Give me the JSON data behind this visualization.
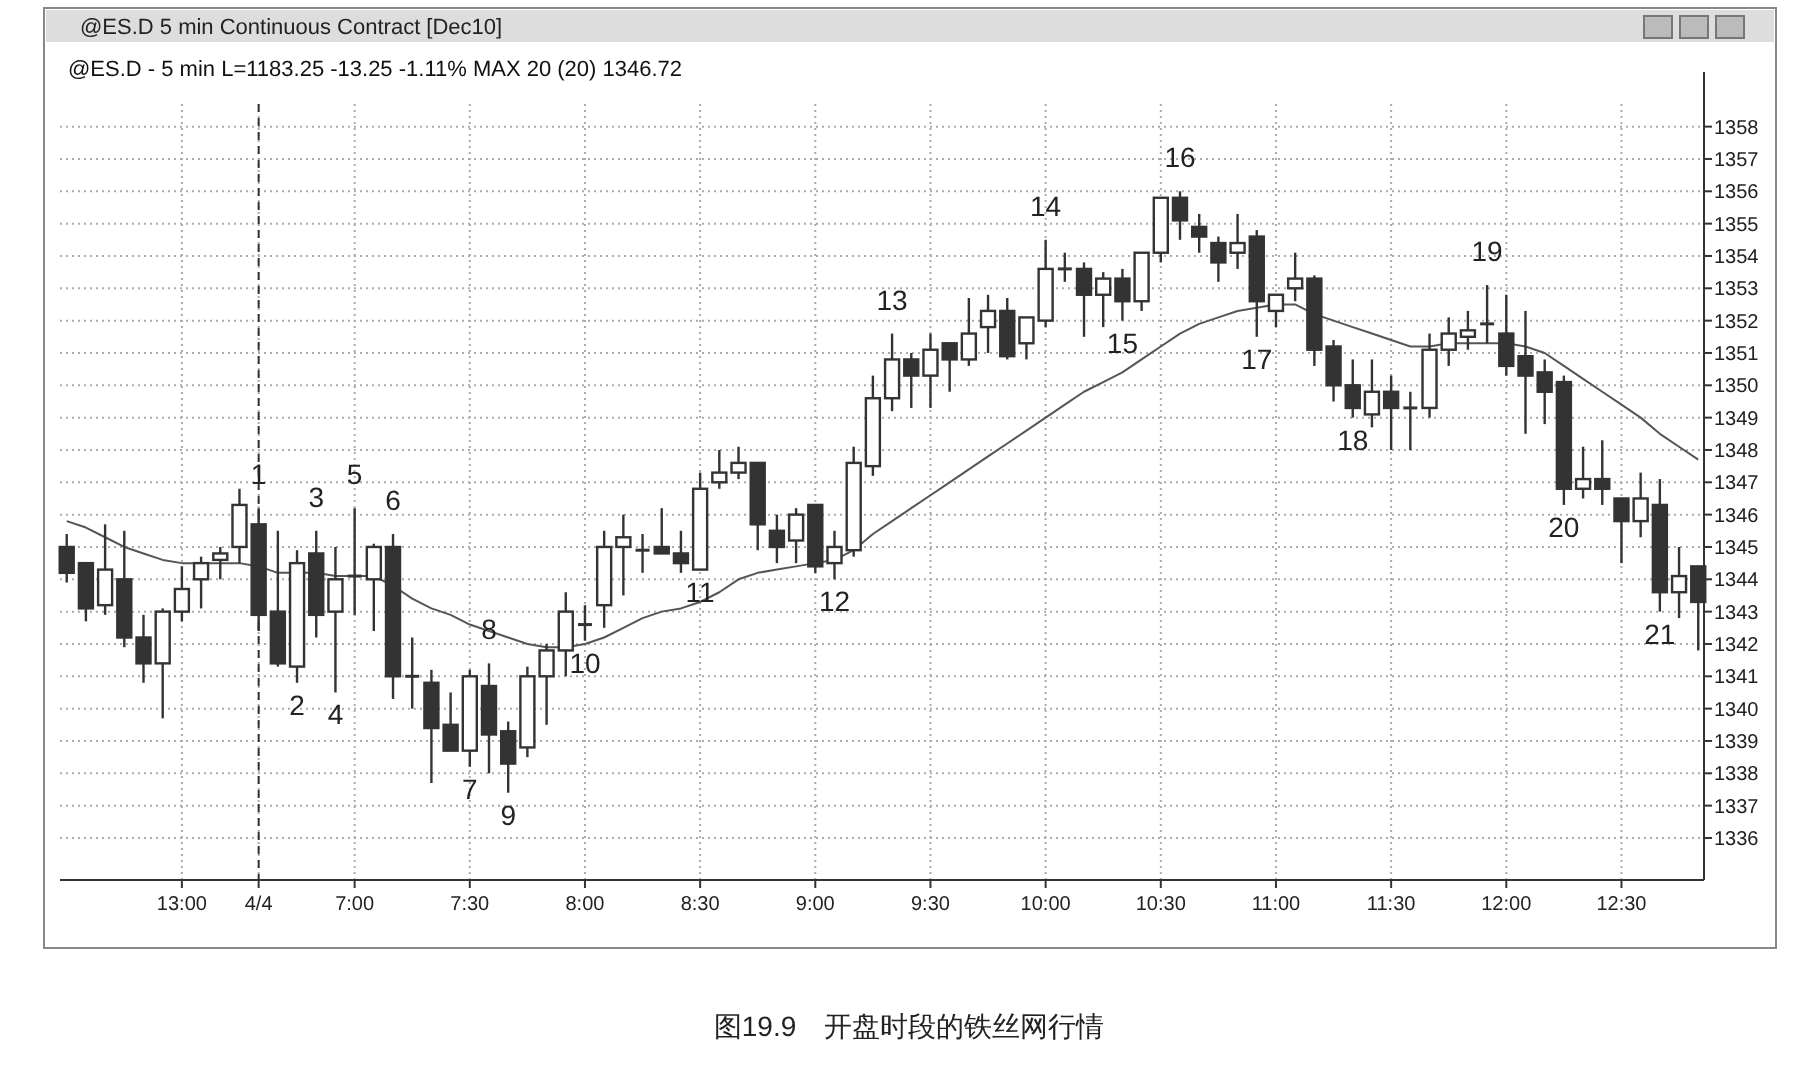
{
  "chart_data": {
    "type": "candlestick",
    "title": "@ES.D - 5 min  L=1183.25  -13.25  -1.11%  MAX 20 (20)  1346.72",
    "subtitle": "@ES.D 5 min Continuous Contract [Dec10]",
    "color": "#333333",
    "categories": [
      null,
      null,
      null,
      null,
      null,
      null,
      "13:00",
      null,
      null,
      null,
      "4/4",
      null,
      null,
      null,
      null,
      "7:00",
      null,
      null,
      null,
      null,
      null,
      "7:30",
      null,
      null,
      null,
      null,
      null,
      "8:00",
      null,
      null,
      null,
      null,
      null,
      "8:30",
      null,
      null,
      null,
      null,
      null,
      "9:00",
      null,
      null,
      null,
      null,
      null,
      "9:30",
      null,
      null,
      null,
      null,
      null,
      "10:00",
      null,
      null,
      null,
      null,
      null,
      "10:30",
      null,
      null,
      null,
      null,
      null,
      "11:00",
      null,
      null,
      null,
      null,
      null,
      "11:30",
      null,
      null,
      null,
      null,
      null,
      "12:00",
      null,
      null,
      null,
      null,
      null,
      "12:30",
      null,
      null,
      null,
      null
    ],
    "ohlc": [
      [
        1345.0,
        1345.4,
        1343.9,
        1344.2
      ],
      [
        1344.5,
        1344.5,
        1342.7,
        1343.1
      ],
      [
        1343.2,
        1345.7,
        1342.9,
        1344.3
      ],
      [
        1344.0,
        1345.5,
        1341.9,
        1342.2
      ],
      [
        1342.2,
        1342.9,
        1340.8,
        1341.4
      ],
      [
        1341.4,
        1343.1,
        1339.7,
        1343.0
      ],
      [
        1343.0,
        1344.4,
        1342.7,
        1343.7
      ],
      [
        1344.0,
        1344.7,
        1343.1,
        1344.5
      ],
      [
        1344.6,
        1345.0,
        1344.0,
        1344.8
      ],
      [
        1345.0,
        1346.8,
        1344.5,
        1346.3
      ],
      [
        1345.7,
        1346.2,
        1342.4,
        1342.9
      ],
      [
        1343.0,
        1345.5,
        1341.3,
        1341.4
      ],
      [
        1341.3,
        1344.9,
        1340.8,
        1344.5
      ],
      [
        1344.8,
        1345.5,
        1342.2,
        1342.9
      ],
      [
        1343.0,
        1345.0,
        1340.5,
        1344.0
      ],
      [
        1344.1,
        1346.2,
        1342.9,
        1344.1
      ],
      [
        1344.0,
        1345.1,
        1342.4,
        1345.0
      ],
      [
        1345.0,
        1345.4,
        1340.3,
        1341.0
      ],
      [
        1341.0,
        1342.2,
        1340.0,
        1341.0
      ],
      [
        1340.8,
        1341.2,
        1337.7,
        1339.4
      ],
      [
        1339.5,
        1340.5,
        1338.7,
        1338.7
      ],
      [
        1338.7,
        1341.2,
        1338.2,
        1341.0
      ],
      [
        1340.7,
        1341.4,
        1338.0,
        1339.2
      ],
      [
        1339.3,
        1339.6,
        1337.4,
        1338.3
      ],
      [
        1338.8,
        1341.3,
        1338.5,
        1341.0
      ],
      [
        1341.0,
        1342.0,
        1339.5,
        1341.8
      ],
      [
        1341.8,
        1343.6,
        1341.0,
        1343.0
      ],
      [
        1342.6,
        1343.2,
        1342.1,
        1342.6
      ],
      [
        1343.2,
        1345.5,
        1342.5,
        1345.0
      ],
      [
        1345.0,
        1346.0,
        1343.5,
        1345.3
      ],
      [
        1344.9,
        1345.4,
        1344.2,
        1344.9
      ],
      [
        1345.0,
        1346.2,
        1344.8,
        1344.8
      ],
      [
        1344.8,
        1345.5,
        1344.2,
        1344.5
      ],
      [
        1344.3,
        1347.3,
        1344.3,
        1346.8
      ],
      [
        1347.0,
        1348.0,
        1346.8,
        1347.3
      ],
      [
        1347.3,
        1348.1,
        1347.1,
        1347.6
      ],
      [
        1347.6,
        1347.6,
        1344.9,
        1345.7
      ],
      [
        1345.5,
        1346.0,
        1344.5,
        1345.0
      ],
      [
        1345.2,
        1346.2,
        1344.5,
        1346.0
      ],
      [
        1346.3,
        1346.3,
        1344.2,
        1344.4
      ],
      [
        1344.5,
        1345.5,
        1344.0,
        1345.0
      ],
      [
        1344.9,
        1348.1,
        1344.7,
        1347.6
      ],
      [
        1347.5,
        1350.3,
        1347.2,
        1349.6
      ],
      [
        1349.6,
        1351.6,
        1349.2,
        1350.8
      ],
      [
        1350.8,
        1351.0,
        1349.3,
        1350.3
      ],
      [
        1350.3,
        1351.6,
        1349.3,
        1351.1
      ],
      [
        1351.3,
        1351.3,
        1349.8,
        1350.8
      ],
      [
        1350.8,
        1352.7,
        1350.6,
        1351.6
      ],
      [
        1351.8,
        1352.8,
        1351.0,
        1352.3
      ],
      [
        1352.3,
        1352.7,
        1350.8,
        1350.9
      ],
      [
        1351.3,
        1352.1,
        1350.8,
        1352.1
      ],
      [
        1352.0,
        1354.5,
        1351.8,
        1353.6
      ],
      [
        1353.6,
        1354.1,
        1353.2,
        1353.6
      ],
      [
        1353.6,
        1353.8,
        1351.5,
        1352.8
      ],
      [
        1352.8,
        1353.5,
        1351.8,
        1353.3
      ],
      [
        1353.3,
        1353.6,
        1352.0,
        1352.6
      ],
      [
        1352.6,
        1354.1,
        1352.3,
        1354.1
      ],
      [
        1354.1,
        1355.8,
        1353.8,
        1355.8
      ],
      [
        1355.8,
        1356.0,
        1354.5,
        1355.1
      ],
      [
        1354.9,
        1355.3,
        1354.1,
        1354.6
      ],
      [
        1354.4,
        1354.6,
        1353.2,
        1353.8
      ],
      [
        1354.1,
        1355.3,
        1353.6,
        1354.4
      ],
      [
        1354.6,
        1354.8,
        1351.5,
        1352.6
      ],
      [
        1352.3,
        1352.8,
        1351.8,
        1352.8
      ],
      [
        1353.0,
        1354.1,
        1352.6,
        1353.3
      ],
      [
        1353.3,
        1353.4,
        1350.6,
        1351.1
      ],
      [
        1351.2,
        1351.4,
        1349.5,
        1350.0
      ],
      [
        1350.0,
        1350.8,
        1349.0,
        1349.3
      ],
      [
        1349.1,
        1350.8,
        1348.7,
        1349.8
      ],
      [
        1349.8,
        1350.3,
        1348.0,
        1349.3
      ],
      [
        1349.3,
        1349.8,
        1348.0,
        1349.3
      ],
      [
        1349.3,
        1351.6,
        1349.0,
        1351.1
      ],
      [
        1351.1,
        1352.1,
        1350.6,
        1351.6
      ],
      [
        1351.5,
        1352.3,
        1351.1,
        1351.7
      ],
      [
        1351.9,
        1353.1,
        1351.3,
        1351.9
      ],
      [
        1351.6,
        1352.8,
        1350.3,
        1350.6
      ],
      [
        1350.9,
        1352.3,
        1348.5,
        1350.3
      ],
      [
        1350.4,
        1350.8,
        1348.8,
        1349.8
      ],
      [
        1350.1,
        1350.3,
        1346.3,
        1346.8
      ],
      [
        1346.8,
        1348.1,
        1346.5,
        1347.1
      ],
      [
        1347.1,
        1348.3,
        1346.3,
        1346.8
      ],
      [
        1346.5,
        1346.5,
        1344.5,
        1345.8
      ],
      [
        1345.8,
        1347.3,
        1345.3,
        1346.5
      ],
      [
        1346.3,
        1347.1,
        1343.0,
        1343.6
      ],
      [
        1343.6,
        1345.0,
        1342.8,
        1344.1
      ],
      [
        1344.4,
        1344.4,
        1341.8,
        1343.3
      ]
    ],
    "series": [
      {
        "type": "line",
        "color": "#555555",
        "line_style": "solid",
        "values": [
          1345.8,
          1345.6,
          1345.3,
          1345.0,
          1344.8,
          1344.6,
          1344.5,
          1344.5,
          1344.5,
          1344.5,
          1344.4,
          1344.2,
          1344.2,
          1344.2,
          1344.1,
          1344.1,
          1344.1,
          1343.8,
          1343.4,
          1343.1,
          1342.9,
          1342.6,
          1342.4,
          1342.2,
          1342.0,
          1341.9,
          1341.9,
          1342.0,
          1342.2,
          1342.5,
          1342.8,
          1343.0,
          1343.1,
          1343.3,
          1343.6,
          1344.0,
          1344.2,
          1344.3,
          1344.4,
          1344.5,
          1344.6,
          1344.9,
          1345.4,
          1345.8,
          1346.2,
          1346.6,
          1347.0,
          1347.4,
          1347.8,
          1348.2,
          1348.6,
          1349.0,
          1349.4,
          1349.8,
          1350.1,
          1350.4,
          1350.8,
          1351.2,
          1351.6,
          1351.9,
          1352.1,
          1352.3,
          1352.4,
          1352.5,
          1352.5,
          1352.2,
          1352.0,
          1351.8,
          1351.6,
          1351.4,
          1351.2,
          1351.2,
          1351.3,
          1351.3,
          1351.3,
          1351.3,
          1351.2,
          1351.0,
          1350.6,
          1350.2,
          1349.8,
          1349.4,
          1349.0,
          1348.5,
          1348.1,
          1347.7
        ]
      }
    ],
    "ylim": [
      1334.7,
      1358.7
    ],
    "yticks": [
      1336,
      1337,
      1338,
      1339,
      1340,
      1341,
      1342,
      1343,
      1344,
      1345,
      1346,
      1347,
      1348,
      1349,
      1350,
      1351,
      1352,
      1353,
      1354,
      1355,
      1356,
      1357,
      1358
    ],
    "grid": true,
    "ref_lines": [
      {
        "axis": "x",
        "value": "4/4",
        "color": "#333333",
        "line_style": "dashed"
      }
    ],
    "annotations": [
      "1",
      "2",
      "3",
      "4",
      "5",
      "6",
      "7",
      "8",
      "9",
      "10",
      "11",
      "12",
      "13",
      "14",
      "15",
      "16",
      "17",
      "18",
      "19",
      "20",
      "21",
      "图19.9　开盘时段的铁丝网行情"
    ]
  }
}
